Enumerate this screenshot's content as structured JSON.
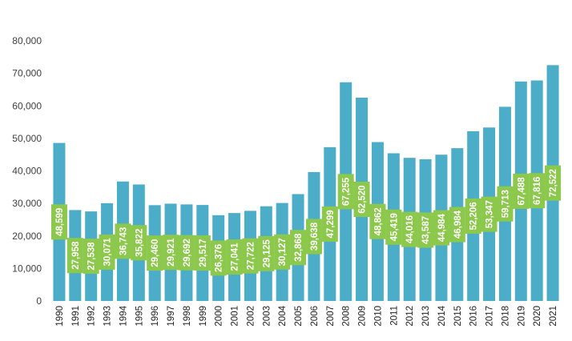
{
  "chart_data": {
    "type": "bar",
    "categories": [
      "1990",
      "1991",
      "1992",
      "1993",
      "1994",
      "1995",
      "1996",
      "1997",
      "1998",
      "1999",
      "2000",
      "2001",
      "2002",
      "2003",
      "2004",
      "2005",
      "2006",
      "2007",
      "2008",
      "2009",
      "2010",
      "2011",
      "2012",
      "2013",
      "2014",
      "2015",
      "2016",
      "2017",
      "2018",
      "2019",
      "2020",
      "2021"
    ],
    "values": [
      48599,
      27958,
      27538,
      30071,
      36743,
      35822,
      29460,
      29921,
      29692,
      29517,
      26376,
      27041,
      27722,
      29125,
      30127,
      32868,
      39638,
      47299,
      67255,
      62520,
      48862,
      45419,
      44016,
      43587,
      44984,
      46984,
      52206,
      53347,
      59713,
      67488,
      67816,
      72522
    ],
    "data_labels": [
      "48,599",
      "27,958",
      "27,538",
      "30,071",
      "36,743",
      "35,822",
      "29,460",
      "29,921",
      "29,692",
      "29,517",
      "26,376",
      "27,041",
      "27,722",
      "29,125",
      "30,127",
      "32,868",
      "39,638",
      "47,299",
      "67,255",
      "62,520",
      "48,862",
      "45,419",
      "44,016",
      "43,587",
      "44,984",
      "46,984",
      "52,206",
      "53,347",
      "59,713",
      "67,488",
      "67,816",
      "72,522"
    ],
    "y_ticks": [
      "0",
      "10,000",
      "20,000",
      "30,000",
      "40,000",
      "50,000",
      "60,000",
      "70,000",
      "80,000"
    ],
    "ylim": [
      0,
      80000
    ],
    "title": "",
    "xlabel": "",
    "ylabel": "",
    "grid": false,
    "bar_color": "#4badc8",
    "label_box_color": "#8cc84b",
    "label_text_color": "#ffffff"
  }
}
